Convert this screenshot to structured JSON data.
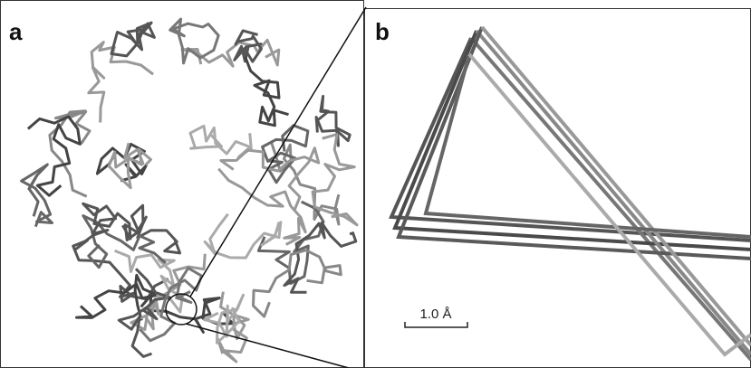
{
  "panels": [
    {
      "label": "a"
    },
    {
      "label": "b",
      "scale_bar": "1.0 Å"
    }
  ]
}
